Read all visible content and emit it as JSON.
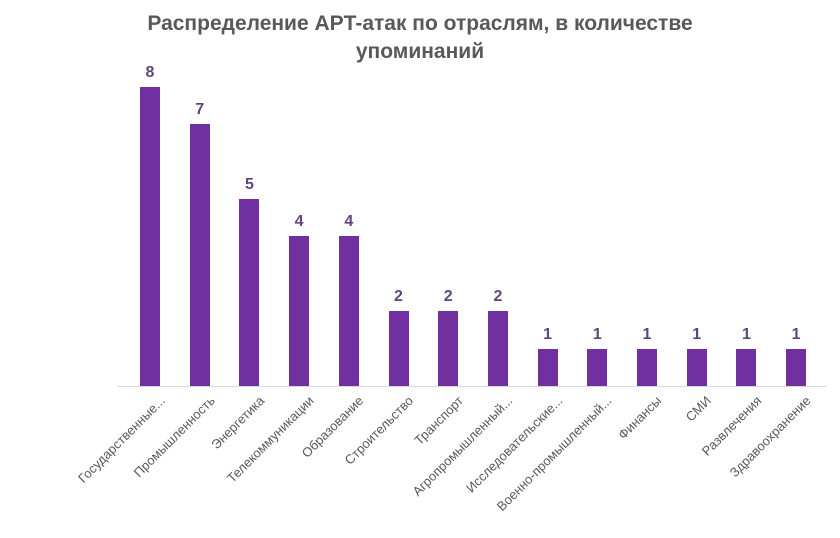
{
  "header": {
    "title_line1": "Распределение APT-атак по отраслям, в количестве",
    "title_line2": "упоминаний"
  },
  "chart_data": {
    "type": "bar",
    "title": "Распределение APT-атак по отраслям, в количестве упоминаний",
    "xlabel": "",
    "ylabel": "",
    "categories": [
      "Государственные...",
      "Промышленность",
      "Энергетика",
      "Телекоммуникации",
      "Образование",
      "Строительство",
      "Транспорт",
      "Агропромышленный...",
      "Исследовательские...",
      "Военно-промышленный...",
      "Финансы",
      "СМИ",
      "Развлечения",
      "Здравоохранение"
    ],
    "values": [
      8,
      7,
      5,
      4,
      4,
      2,
      2,
      2,
      1,
      1,
      1,
      1,
      1,
      1
    ],
    "data_labels": [
      8,
      7,
      5,
      4,
      4,
      2,
      2,
      2,
      1,
      1,
      1,
      1,
      1,
      1
    ],
    "ylim": [
      0,
      8
    ],
    "grid": false,
    "legend": "none",
    "x_tick_rotation": 45,
    "colors": {
      "bar": "#7030a0",
      "value_label": "#5f467d",
      "title_text": "#595959",
      "axis_text": "#595959",
      "axis_line": "#d9d9d9",
      "background": "#ffffff"
    }
  }
}
